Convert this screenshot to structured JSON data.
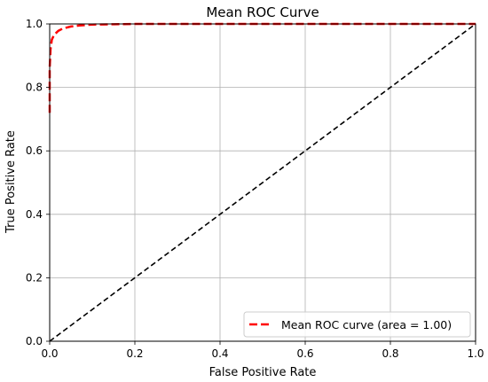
{
  "chart_data": {
    "type": "line",
    "title": "Mean ROC Curve",
    "xlabel": "False Positive Rate",
    "ylabel": "True Positive Rate",
    "xlim": [
      0.0,
      1.0
    ],
    "ylim": [
      0.0,
      1.0
    ],
    "xticks": [
      "0.0",
      "0.2",
      "0.4",
      "0.6",
      "0.8",
      "1.0"
    ],
    "yticks": [
      "0.0",
      "0.2",
      "0.4",
      "0.6",
      "0.8",
      "1.0"
    ],
    "grid": true,
    "legend_position": "lower-right",
    "series": [
      {
        "name": "Mean ROC curve (area = 1.00)",
        "color": "#ff0000",
        "style": "dashed",
        "x": [
          0.0,
          0.0,
          0.002,
          0.005,
          0.01,
          0.02,
          0.03,
          0.05,
          0.07,
          0.1,
          0.15,
          0.2,
          0.3,
          0.5,
          0.7,
          1.0
        ],
        "y": [
          0.72,
          0.86,
          0.92,
          0.95,
          0.965,
          0.978,
          0.985,
          0.992,
          0.995,
          0.998,
          0.999,
          1.0,
          1.0,
          1.0,
          1.0,
          1.0
        ]
      },
      {
        "name": "",
        "color": "#000000",
        "style": "dashed",
        "x": [
          0.0,
          1.0
        ],
        "y": [
          0.0,
          1.0
        ]
      }
    ]
  }
}
